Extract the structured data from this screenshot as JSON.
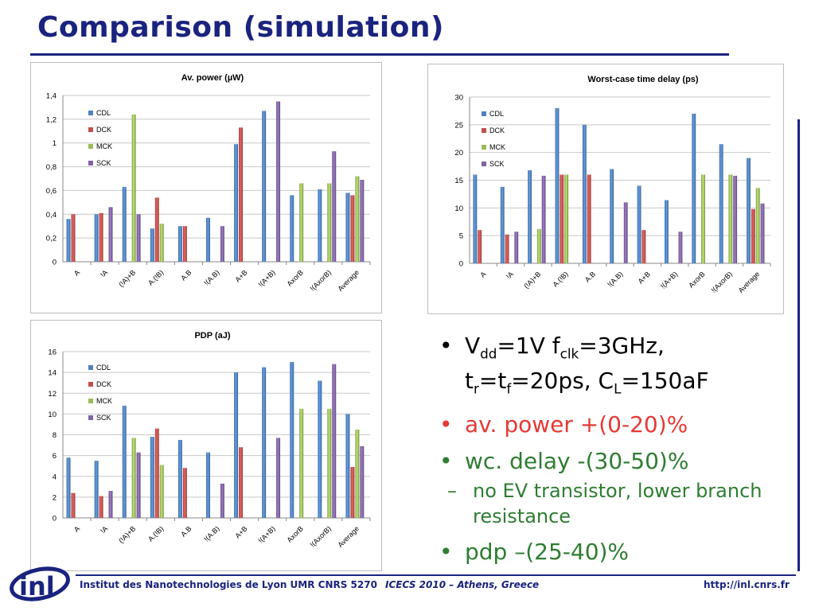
{
  "slide": {
    "title": "Comparison (simulation)"
  },
  "bullets": {
    "b1": {
      "v": "V",
      "v_sub": "dd",
      "eq1": "=1V f",
      "f_sub": "clk",
      "eq2": "=3GHz,",
      "t": "t",
      "tr_sub": "r",
      "eq3": "=t",
      "tf_sub": "f",
      "eq4": "=20ps, C",
      "cl_sub": "L",
      "eq5": "=150aF"
    },
    "b2": "av. power +(0-20)%",
    "b3": "wc. delay -(30-50)%",
    "b3_sub": "no EV transistor, lower branch resistance",
    "b4": "pdp –(25-40)%",
    "bullet_char": "•",
    "dash_char": "–"
  },
  "footer": {
    "left": "Institut des Nanotechnologies de Lyon UMR CNRS 5270",
    "center": "ICECS 2010 – Athens, Greece",
    "right": "http://inl.cnrs.fr",
    "logo_text": "inl"
  },
  "colors": {
    "title": "#1a237e",
    "bullet_red": "#e53935",
    "bullet_green": "#2e7d32",
    "CDL": "#4f81bd",
    "DCK": "#c0504d",
    "MCK": "#9bbb59",
    "SCK": "#8064a2"
  },
  "chart_data": [
    {
      "type": "bar",
      "title": "Av. power (µW)",
      "categories": [
        "A",
        "!A",
        "(!A)+B",
        "A.(!B)",
        "A.B",
        "!(A.B)",
        "A+B",
        "!(A+B)",
        "AxorB",
        "!(AxorB)",
        "Average"
      ],
      "series": [
        {
          "name": "CDL",
          "values": [
            0.36,
            0.4,
            0.63,
            0.28,
            0.3,
            0.37,
            0.99,
            1.27,
            0.56,
            0.61,
            0.58
          ]
        },
        {
          "name": "DCK",
          "values": [
            0.4,
            0.41,
            null,
            0.54,
            0.3,
            null,
            1.13,
            null,
            null,
            null,
            0.56
          ]
        },
        {
          "name": "MCK",
          "values": [
            null,
            null,
            1.24,
            0.32,
            null,
            null,
            null,
            null,
            0.66,
            0.66,
            0.72
          ]
        },
        {
          "name": "SCK",
          "values": [
            null,
            0.46,
            0.4,
            null,
            null,
            0.3,
            null,
            1.35,
            null,
            0.93,
            0.69
          ]
        }
      ],
      "yticks": [
        "0",
        "0,2",
        "0,4",
        "0,6",
        "0,8",
        "1",
        "1,2",
        "1,4"
      ],
      "ylim": [
        0,
        1.4
      ],
      "legend": "top-left",
      "grid": true
    },
    {
      "type": "bar",
      "title": "Worst-case time delay (ps)",
      "categories": [
        "A",
        "!A",
        "(!A)+B",
        "A.(!B)",
        "A.B",
        "!(A.B)",
        "A+B",
        "!(A+B)",
        "AxorB",
        "!(AxorB)",
        "Average"
      ],
      "series": [
        {
          "name": "CDL",
          "values": [
            16,
            13.8,
            16.8,
            28,
            25,
            17,
            14,
            11.4,
            27,
            21.5,
            19
          ]
        },
        {
          "name": "DCK",
          "values": [
            6,
            5.2,
            null,
            16,
            16,
            null,
            6,
            null,
            null,
            null,
            9.8
          ]
        },
        {
          "name": "MCK",
          "values": [
            null,
            null,
            6.2,
            16,
            null,
            null,
            null,
            null,
            16,
            16,
            13.6
          ]
        },
        {
          "name": "SCK",
          "values": [
            null,
            5.7,
            15.8,
            null,
            null,
            11,
            null,
            5.7,
            null,
            15.8,
            10.8
          ]
        }
      ],
      "yticks": [
        "0",
        "5",
        "10",
        "15",
        "20",
        "25",
        "30"
      ],
      "ylim": [
        0,
        30
      ],
      "legend": "top-left",
      "grid": true
    },
    {
      "type": "bar",
      "title": "PDP (aJ)",
      "categories": [
        "A",
        "!A",
        "(!A)+B",
        "A.(!B)",
        "A.B",
        "!(A.B)",
        "A+B",
        "!(A+B)",
        "AxorB",
        "!(AxorB)",
        "Average"
      ],
      "series": [
        {
          "name": "CDL",
          "values": [
            5.8,
            5.5,
            10.8,
            7.8,
            7.5,
            6.3,
            14,
            14.5,
            15,
            13.2,
            10
          ]
        },
        {
          "name": "DCK",
          "values": [
            2.4,
            2.1,
            null,
            8.6,
            4.8,
            null,
            6.8,
            null,
            null,
            null,
            4.9
          ]
        },
        {
          "name": "MCK",
          "values": [
            null,
            null,
            7.7,
            5.1,
            null,
            null,
            null,
            null,
            10.5,
            10.5,
            8.5
          ]
        },
        {
          "name": "SCK",
          "values": [
            null,
            2.6,
            6.3,
            null,
            null,
            3.3,
            null,
            7.7,
            null,
            14.8,
            6.9
          ]
        }
      ],
      "yticks": [
        "0",
        "2",
        "4",
        "6",
        "8",
        "10",
        "12",
        "14",
        "16"
      ],
      "ylim": [
        0,
        16
      ],
      "legend": "top-left",
      "grid": true
    }
  ]
}
